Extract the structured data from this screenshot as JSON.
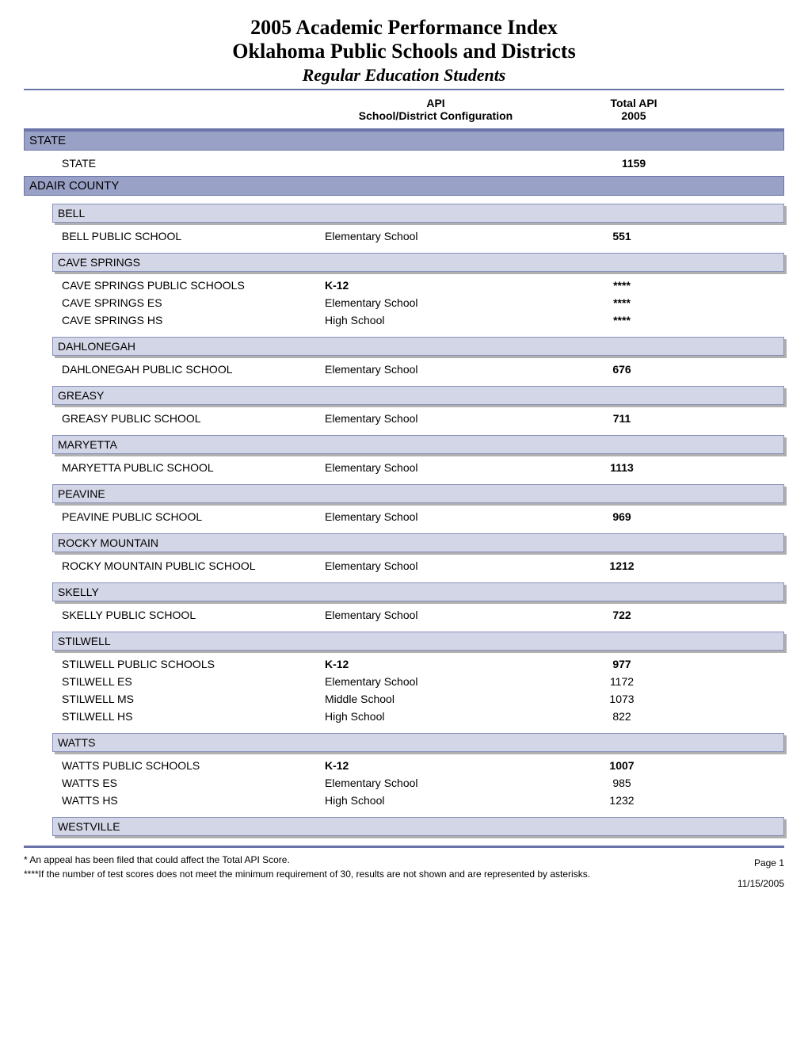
{
  "title": {
    "line1": "2005 Academic Performance Index",
    "line2": "Oklahoma Public Schools and Districts",
    "subtitle": "Regular Education Students"
  },
  "columns": {
    "config_line1": "API",
    "config_line2": "School/District Configuration",
    "api_line1": "Total API",
    "api_line2": "2005"
  },
  "state_section": {
    "label": "STATE",
    "row": {
      "name": "STATE",
      "api": "1159"
    }
  },
  "county": {
    "label": "ADAIR COUNTY",
    "districts": [
      {
        "label": "BELL",
        "schools": [
          {
            "name": "BELL PUBLIC SCHOOL",
            "config": "Elementary School",
            "api": "551",
            "bold_config": false,
            "bold_api": true
          }
        ]
      },
      {
        "label": "CAVE SPRINGS",
        "schools": [
          {
            "name": "CAVE SPRINGS PUBLIC SCHOOLS",
            "config": "K-12",
            "api": "****",
            "bold_config": true,
            "bold_api": true
          },
          {
            "name": "CAVE SPRINGS ES",
            "config": "Elementary School",
            "api": "****",
            "bold_config": false,
            "bold_api": true
          },
          {
            "name": "CAVE SPRINGS HS",
            "config": "High School",
            "api": "****",
            "bold_config": false,
            "bold_api": true
          }
        ]
      },
      {
        "label": "DAHLONEGAH",
        "schools": [
          {
            "name": "DAHLONEGAH PUBLIC SCHOOL",
            "config": "Elementary School",
            "api": "676",
            "bold_config": false,
            "bold_api": true
          }
        ]
      },
      {
        "label": "GREASY",
        "schools": [
          {
            "name": "GREASY PUBLIC SCHOOL",
            "config": "Elementary School",
            "api": "711",
            "bold_config": false,
            "bold_api": true
          }
        ]
      },
      {
        "label": "MARYETTA",
        "schools": [
          {
            "name": "MARYETTA PUBLIC SCHOOL",
            "config": "Elementary School",
            "api": "1113",
            "bold_config": false,
            "bold_api": true
          }
        ]
      },
      {
        "label": "PEAVINE",
        "schools": [
          {
            "name": "PEAVINE PUBLIC SCHOOL",
            "config": "Elementary School",
            "api": "969",
            "bold_config": false,
            "bold_api": true
          }
        ]
      },
      {
        "label": "ROCKY MOUNTAIN",
        "schools": [
          {
            "name": "ROCKY MOUNTAIN PUBLIC SCHOOL",
            "config": "Elementary School",
            "api": "1212",
            "bold_config": false,
            "bold_api": true
          }
        ]
      },
      {
        "label": "SKELLY",
        "schools": [
          {
            "name": "SKELLY PUBLIC SCHOOL",
            "config": "Elementary School",
            "api": "722",
            "bold_config": false,
            "bold_api": true
          }
        ]
      },
      {
        "label": "STILWELL",
        "schools": [
          {
            "name": "STILWELL PUBLIC SCHOOLS",
            "config": "K-12",
            "api": "977",
            "bold_config": true,
            "bold_api": true
          },
          {
            "name": "STILWELL ES",
            "config": "Elementary School",
            "api": "1172",
            "bold_config": false,
            "bold_api": false
          },
          {
            "name": "STILWELL MS",
            "config": "Middle School",
            "api": "1073",
            "bold_config": false,
            "bold_api": false
          },
          {
            "name": "STILWELL HS",
            "config": "High School",
            "api": "822",
            "bold_config": false,
            "bold_api": false
          }
        ]
      },
      {
        "label": "WATTS",
        "schools": [
          {
            "name": "WATTS PUBLIC SCHOOLS",
            "config": "K-12",
            "api": "1007",
            "bold_config": true,
            "bold_api": true
          },
          {
            "name": "WATTS ES",
            "config": "Elementary School",
            "api": "985",
            "bold_config": false,
            "bold_api": false
          },
          {
            "name": "WATTS HS",
            "config": "High School",
            "api": "1232",
            "bold_config": false,
            "bold_api": false
          }
        ]
      },
      {
        "label": "WESTVILLE",
        "schools": []
      }
    ]
  },
  "footer": {
    "note1": "* An appeal has been filed that could affect the Total API Score.",
    "note2": "****If the number of test scores does not meet the minimum requirement of 30, results are not shown and are represented by asterisks.",
    "page": "Page 1",
    "date": "11/15/2005"
  },
  "styling": {
    "accent_color": "#6b74a8",
    "section_bar_bg": "#9aa1c7",
    "district_bar_bg": "#d3d6e6",
    "district_bar_border": "#8890bb",
    "shadow_color": "#b0b0b0",
    "background_color": "#ffffff",
    "text_color": "#000000",
    "title_font": "Times New Roman",
    "body_font": "Arial",
    "title_fontsize_pt": 20,
    "subtitle_fontsize_pt": 17,
    "body_fontsize_pt": 11,
    "footer_fontsize_pt": 9
  }
}
